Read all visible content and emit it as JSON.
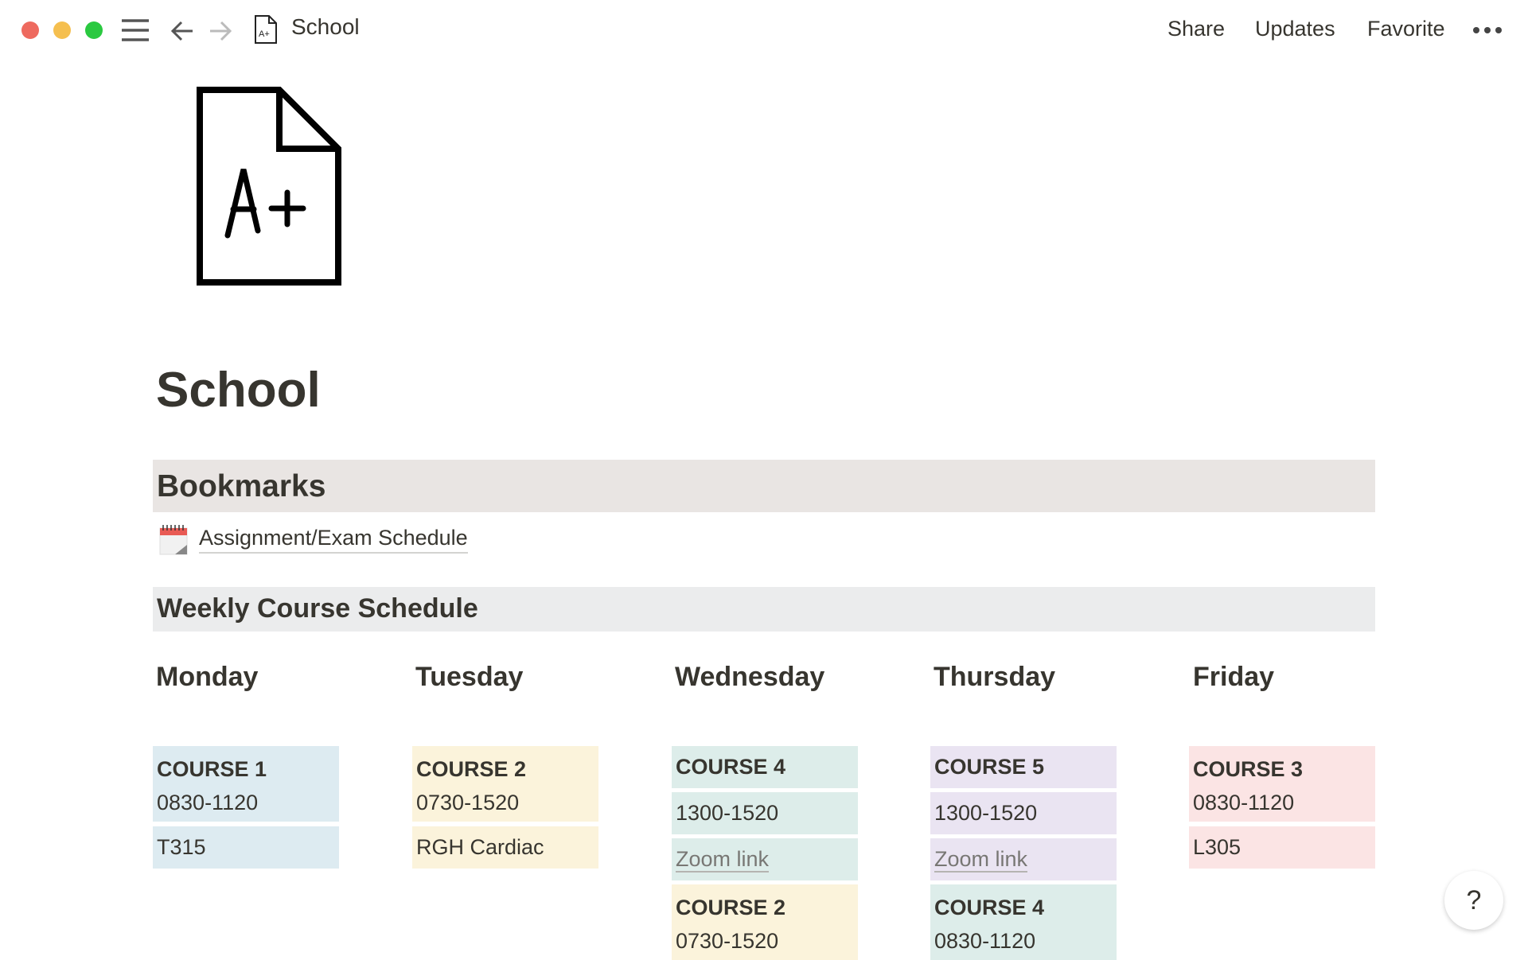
{
  "window": {
    "title": "School",
    "icon": "a-plus-document-icon"
  },
  "toolbar": {
    "share": "Share",
    "updates": "Updates",
    "favorite": "Favorite"
  },
  "page": {
    "title": "School"
  },
  "bookmarks": {
    "heading": "Bookmarks",
    "items": [
      {
        "icon": "calendar-icon",
        "label": "Assignment/Exam Schedule"
      }
    ]
  },
  "schedule": {
    "heading": "Weekly Course Schedule",
    "days": [
      "Monday",
      "Tuesday",
      "Wednesday",
      "Thursday",
      "Friday"
    ],
    "monday": {
      "c1": {
        "name": "COURSE 1",
        "time": "0830-1120"
      },
      "room": "T315"
    },
    "tuesday": {
      "c1": {
        "name": "COURSE 2",
        "time": "0730-1520"
      },
      "room": "RGH Cardiac"
    },
    "wednesday": {
      "c1": {
        "name": "COURSE 4",
        "time": "1300-1520",
        "link": "Zoom link"
      },
      "c2": {
        "name": "COURSE 2",
        "time": "0730-1520"
      }
    },
    "thursday": {
      "c1": {
        "name": "COURSE 5",
        "time": "1300-1520",
        "link": "Zoom link"
      },
      "c2": {
        "name": "COURSE 4",
        "time": "0830-1120"
      }
    },
    "friday": {
      "c1": {
        "name": "COURSE 3",
        "time": "0830-1120"
      },
      "room": "L305"
    }
  },
  "help": "?",
  "colors": {
    "blue": "#ddebf1",
    "yellow": "#fbf3db",
    "green": "#ddedea",
    "purple": "#eae4f2",
    "red": "#fbe4e4"
  }
}
